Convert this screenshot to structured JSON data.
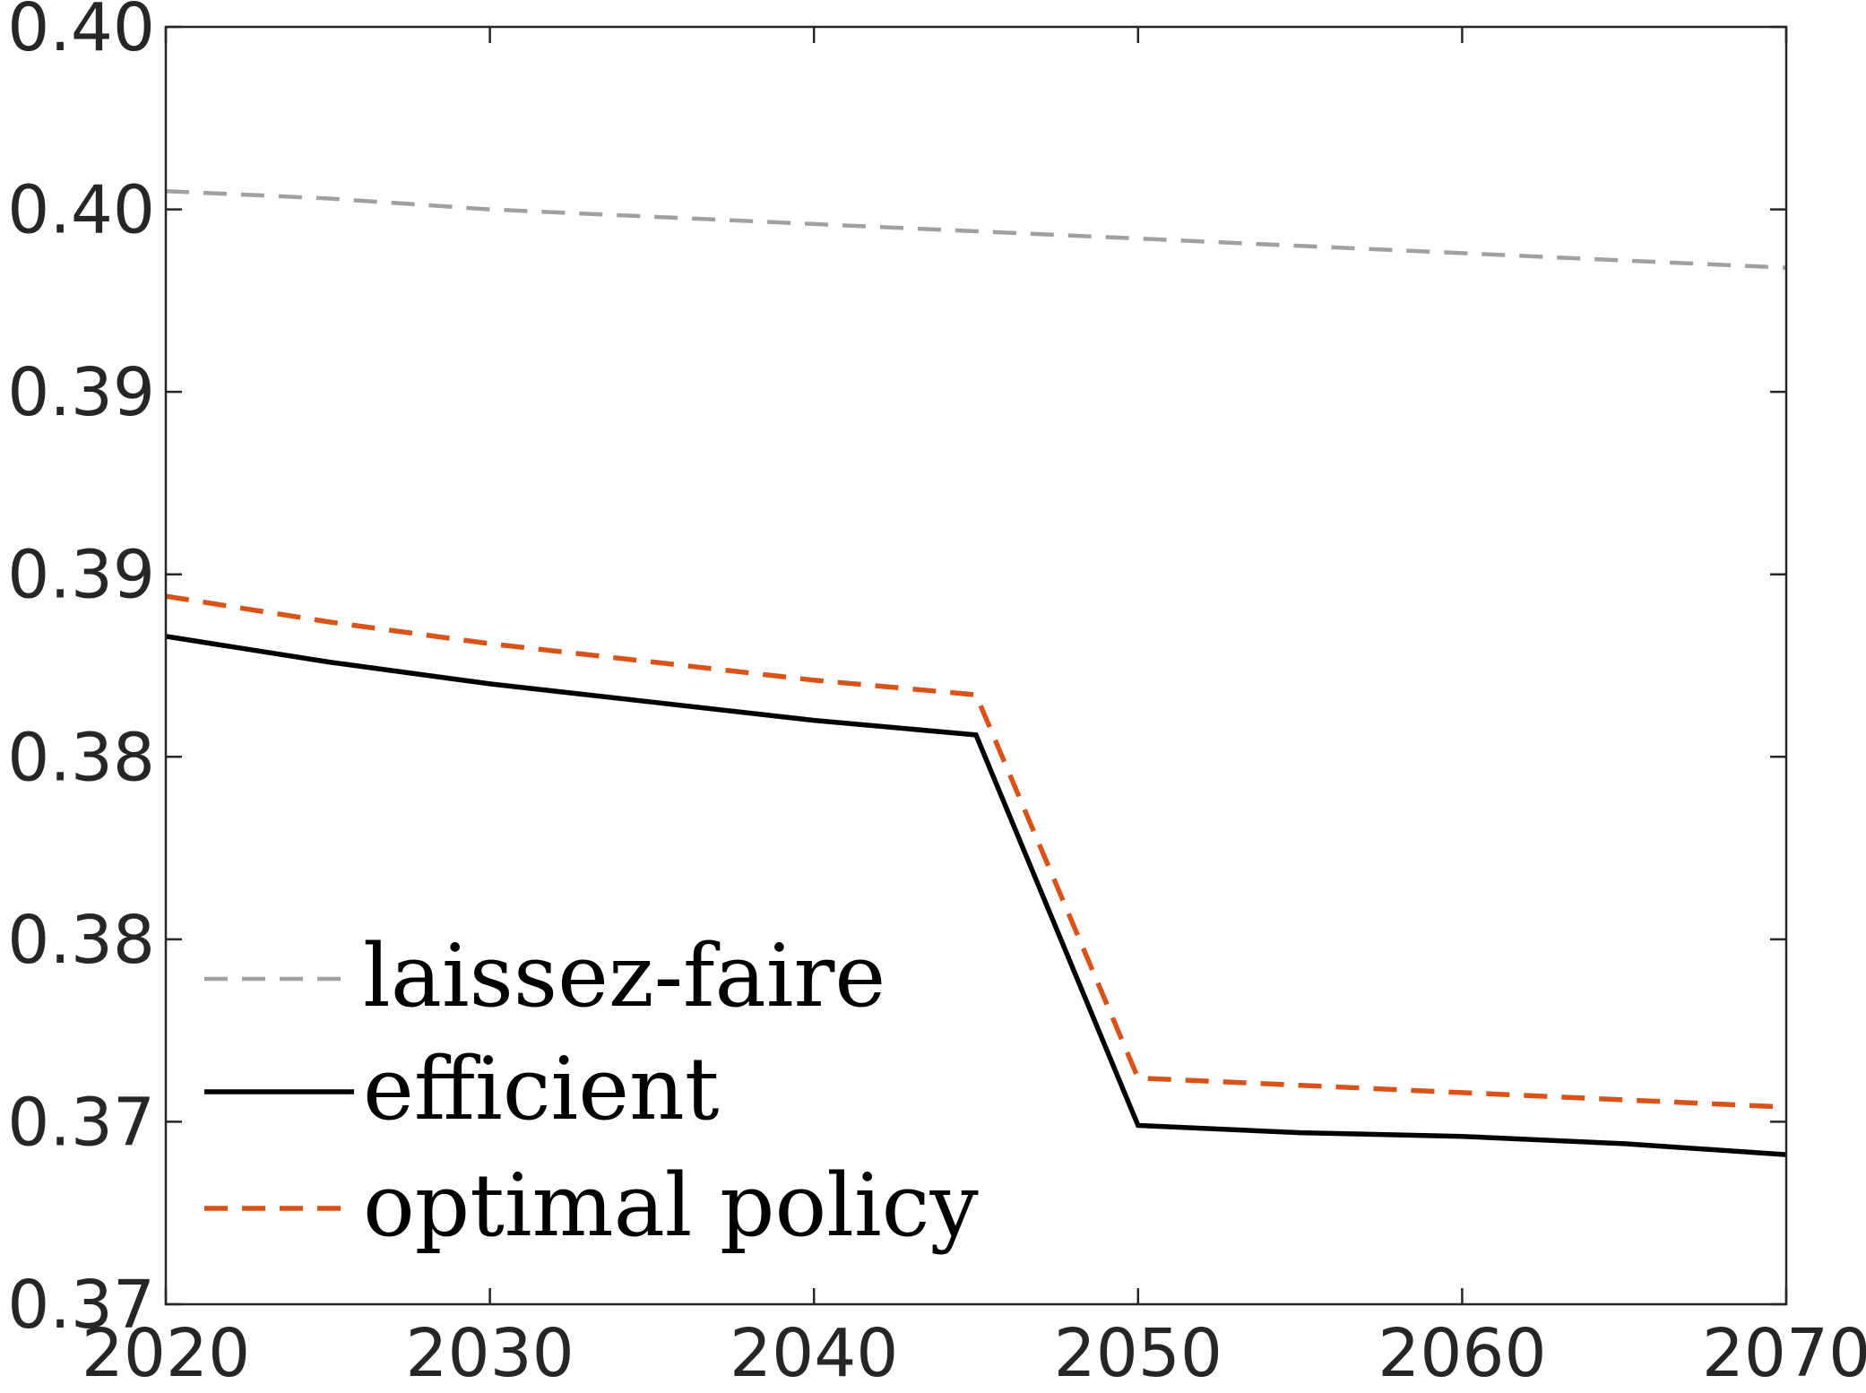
{
  "chart_data": {
    "type": "line",
    "title": "",
    "xlabel": "",
    "ylabel": "",
    "xlim": [
      2020,
      2070
    ],
    "ylim": [
      0.3675,
      0.4025
    ],
    "x_ticks": [
      2020,
      2030,
      2040,
      2050,
      2060,
      2070
    ],
    "x_tick_labels": [
      "2020",
      "2030",
      "2040",
      "2050",
      "2060",
      "2070"
    ],
    "y_ticks": [
      0.3675,
      0.3725,
      0.3775,
      0.3825,
      0.3875,
      0.3925,
      0.3975,
      0.4025
    ],
    "y_tick_labels": [
      "0.37",
      "0.37",
      "0.38",
      "0.38",
      "0.39",
      "0.39",
      "0.40",
      "0.40"
    ],
    "grid": false,
    "legend_position": "bottom-left",
    "series": [
      {
        "name": "laissez-faire",
        "color": "#a0a0a0",
        "style": "dashed",
        "x": [
          2020,
          2025,
          2030,
          2035,
          2040,
          2045,
          2050,
          2055,
          2060,
          2065,
          2070
        ],
        "y": [
          0.398,
          0.3978,
          0.3975,
          0.3973,
          0.3971,
          0.3969,
          0.3967,
          0.3965,
          0.3963,
          0.3961,
          0.3959
        ]
      },
      {
        "name": "efficient",
        "color": "#000000",
        "style": "solid",
        "x": [
          2020,
          2025,
          2030,
          2035,
          2040,
          2045,
          2050,
          2055,
          2060,
          2065,
          2070
        ],
        "y": [
          0.3858,
          0.3851,
          0.3845,
          0.384,
          0.3835,
          0.3831,
          0.3724,
          0.3722,
          0.3721,
          0.3719,
          0.3716
        ]
      },
      {
        "name": "optimal policy",
        "color": "#d95319",
        "style": "dashed",
        "x": [
          2020,
          2025,
          2030,
          2035,
          2040,
          2045,
          2050,
          2055,
          2060,
          2065,
          2070
        ],
        "y": [
          0.3869,
          0.3862,
          0.3856,
          0.3851,
          0.3846,
          0.3842,
          0.3737,
          0.3735,
          0.3733,
          0.3731,
          0.3729
        ]
      }
    ]
  }
}
